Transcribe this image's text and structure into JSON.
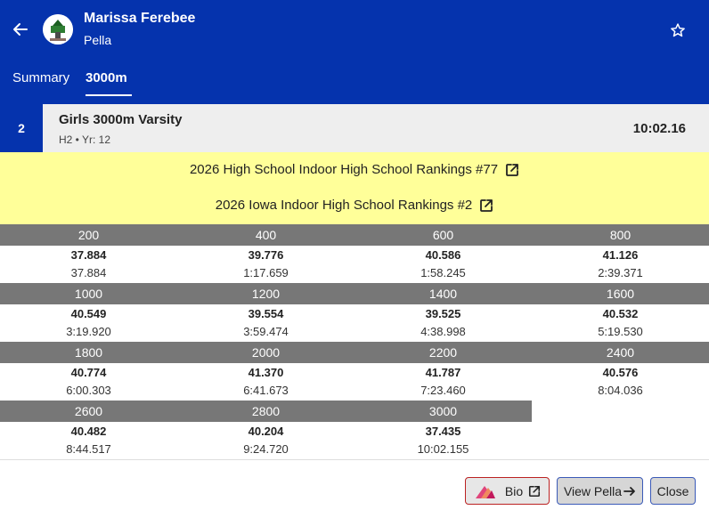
{
  "header": {
    "athlete_name": "Marissa Ferebee",
    "team": "Pella",
    "tabs": [
      {
        "label": "Summary",
        "active": false
      },
      {
        "label": "3000m",
        "active": true
      }
    ],
    "background_color": "#0533ad"
  },
  "event": {
    "place": "2",
    "title": "Girls 3000m Varsity",
    "subtitle": "H2 • Yr: 12",
    "time": "10:02.16"
  },
  "rankings": [
    {
      "label": "2026 High School Indoor High School Rankings #77",
      "icon": "external-link-icon"
    },
    {
      "label": "2026 Iowa Indoor High School Rankings #2",
      "icon": "external-link-icon"
    }
  ],
  "splits": [
    {
      "distance": "200",
      "lap": "37.884",
      "cumulative": "37.884"
    },
    {
      "distance": "400",
      "lap": "39.776",
      "cumulative": "1:17.659"
    },
    {
      "distance": "600",
      "lap": "40.586",
      "cumulative": "1:58.245"
    },
    {
      "distance": "800",
      "lap": "41.126",
      "cumulative": "2:39.371"
    },
    {
      "distance": "1000",
      "lap": "40.549",
      "cumulative": "3:19.920"
    },
    {
      "distance": "1200",
      "lap": "39.554",
      "cumulative": "3:59.474"
    },
    {
      "distance": "1400",
      "lap": "39.525",
      "cumulative": "4:38.998"
    },
    {
      "distance": "1600",
      "lap": "40.532",
      "cumulative": "5:19.530"
    },
    {
      "distance": "1800",
      "lap": "40.774",
      "cumulative": "6:00.303"
    },
    {
      "distance": "2000",
      "lap": "41.370",
      "cumulative": "6:41.673"
    },
    {
      "distance": "2200",
      "lap": "41.787",
      "cumulative": "7:23.460"
    },
    {
      "distance": "2400",
      "lap": "40.576",
      "cumulative": "8:04.036"
    },
    {
      "distance": "2600",
      "lap": "40.482",
      "cumulative": "8:44.517"
    },
    {
      "distance": "2800",
      "lap": "40.204",
      "cumulative": "9:24.720"
    },
    {
      "distance": "3000",
      "lap": "37.435",
      "cumulative": "10:02.155"
    }
  ],
  "footer": {
    "bio_label": "Bio",
    "view_label": "View Pella",
    "close_label": "Close"
  },
  "colors": {
    "primary": "#0533ad",
    "ranking_bg": "#ffff99",
    "split_header": "#777777",
    "bio_border": "#bb2222"
  }
}
